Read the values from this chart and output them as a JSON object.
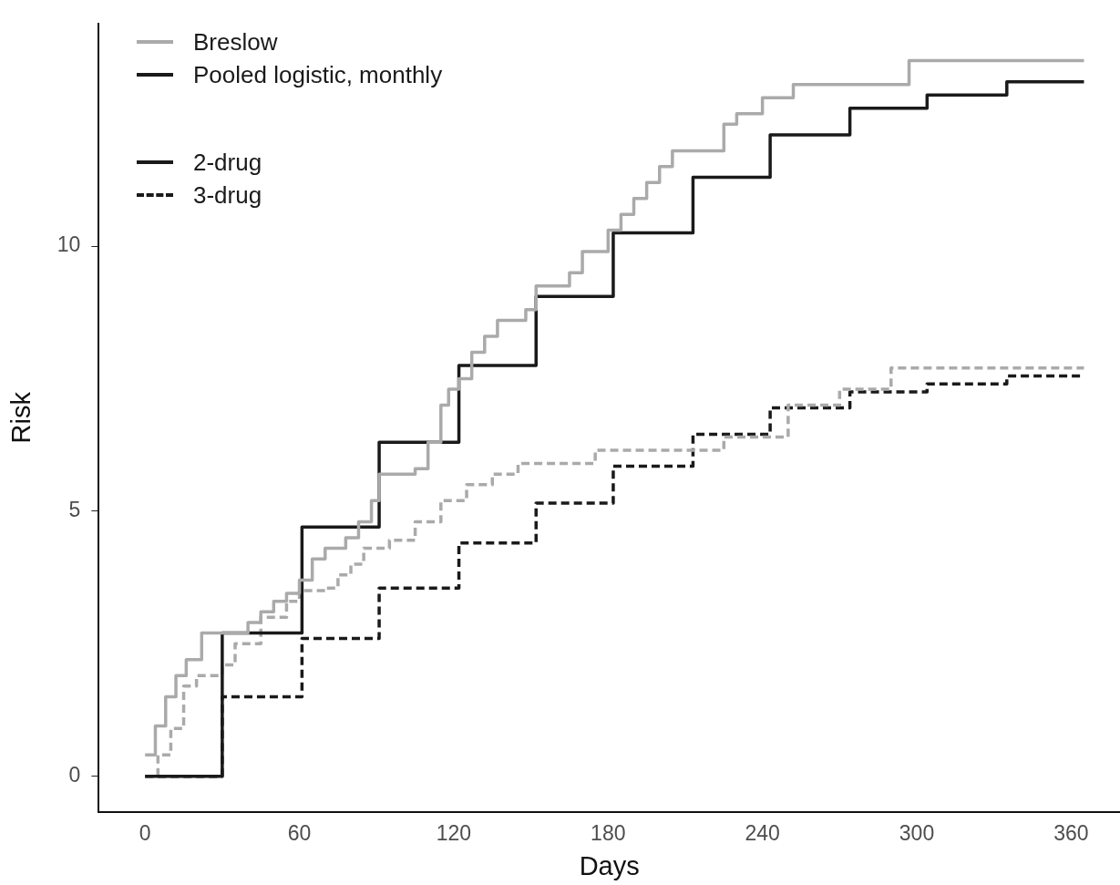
{
  "chart_data": {
    "type": "step",
    "xlabel": "Days",
    "ylabel": "Risk",
    "xlim": [
      -18,
      379
    ],
    "ylim": [
      -0.67,
      14.2
    ],
    "xticks": [
      0,
      60,
      120,
      180,
      240,
      300,
      360
    ],
    "yticks": [
      0,
      5,
      10
    ],
    "grid": false,
    "legend": "top left",
    "marker": "none",
    "annotations": [
      "2-drug",
      "3-drug"
    ],
    "series": [
      {
        "name": "Breslow",
        "color": "#aaaaaa",
        "line_style": "solid",
        "x": [
          0,
          4,
          8,
          12,
          16,
          22,
          40,
          45,
          50,
          55,
          60,
          65,
          70,
          78,
          83,
          88,
          91,
          105,
          110,
          115,
          118,
          122,
          127,
          132,
          137,
          148,
          152,
          165,
          170,
          180,
          185,
          190,
          195,
          200,
          205,
          225,
          230,
          240,
          252,
          297,
          365
        ],
        "values": [
          0.4,
          0.95,
          1.5,
          1.9,
          2.2,
          2.7,
          2.9,
          3.1,
          3.3,
          3.45,
          3.7,
          4.1,
          4.3,
          4.5,
          4.8,
          5.2,
          5.7,
          5.8,
          6.3,
          7.0,
          7.3,
          7.5,
          8.0,
          8.3,
          8.6,
          8.8,
          9.25,
          9.5,
          9.9,
          10.3,
          10.6,
          10.9,
          11.2,
          11.5,
          11.8,
          12.3,
          12.5,
          12.8,
          13.05,
          13.5,
          13.5
        ]
      },
      {
        "name": "Pooled logistic, monthly",
        "color": "#1a1a1a",
        "line_style": "solid",
        "x": [
          0,
          30,
          61,
          91,
          122,
          152,
          182,
          213,
          243,
          274,
          304,
          335,
          365
        ],
        "values": [
          0,
          2.7,
          4.7,
          6.3,
          7.75,
          9.05,
          10.25,
          11.3,
          12.1,
          12.6,
          12.85,
          13.1,
          13.1
        ]
      },
      {
        "color": "#aaaaaa",
        "line_style": "dashed",
        "x": [
          0,
          5,
          10,
          15,
          20,
          30,
          35,
          45,
          55,
          60,
          70,
          75,
          80,
          85,
          95,
          105,
          115,
          125,
          135,
          145,
          175,
          200,
          225,
          250,
          270,
          290,
          365
        ],
        "values": [
          0,
          0.4,
          0.9,
          1.7,
          1.9,
          2.1,
          2.5,
          3.0,
          3.3,
          3.5,
          3.55,
          3.8,
          4.0,
          4.3,
          4.45,
          4.8,
          5.2,
          5.5,
          5.7,
          5.9,
          6.15,
          6.15,
          6.4,
          7.0,
          7.3,
          7.7,
          7.7
        ]
      },
      {
        "color": "#1a1a1a",
        "line_style": "dashed",
        "x": [
          0,
          30,
          61,
          91,
          122,
          152,
          182,
          213,
          243,
          274,
          304,
          335,
          365
        ],
        "values": [
          0,
          1.5,
          2.6,
          3.55,
          4.4,
          5.15,
          5.85,
          6.45,
          6.95,
          7.25,
          7.4,
          7.55,
          7.55
        ]
      }
    ]
  }
}
